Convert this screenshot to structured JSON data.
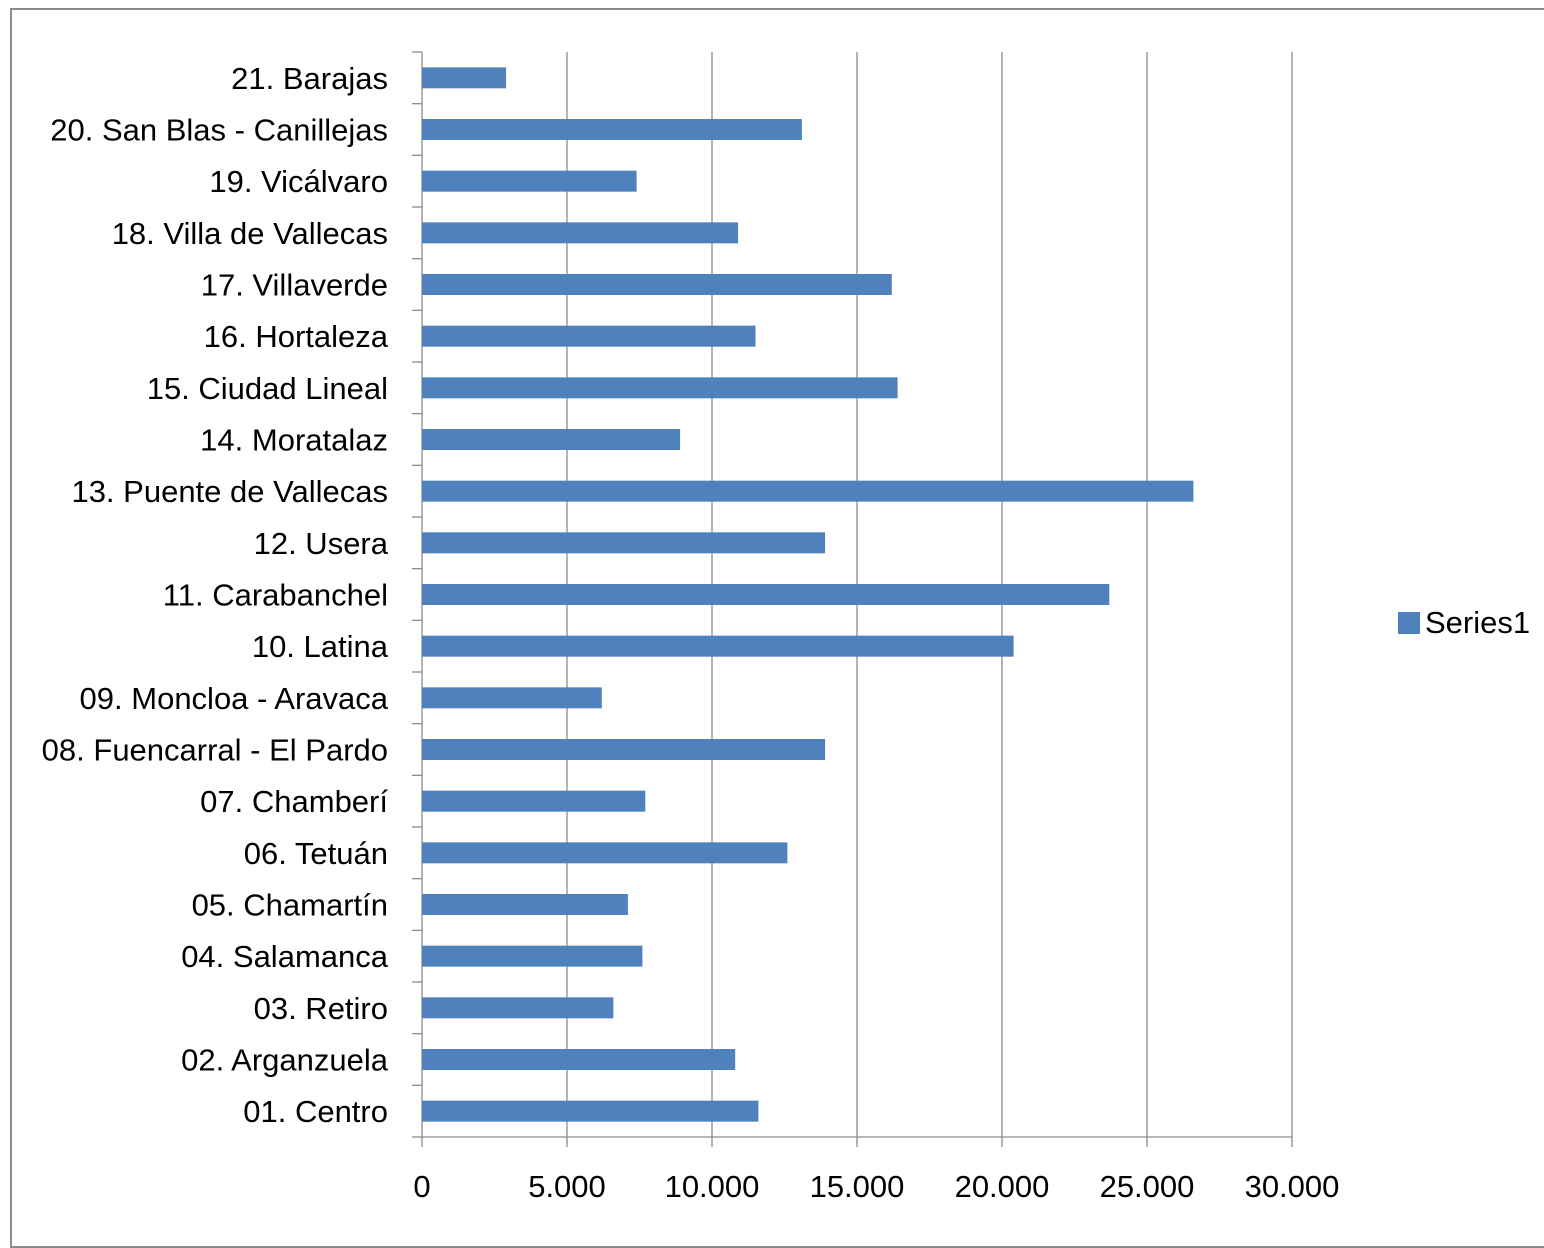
{
  "chart_data": {
    "type": "bar",
    "orientation": "horizontal",
    "categories": [
      "21. Barajas",
      "20. San Blas - Canillejas",
      "19. Vicálvaro",
      "18. Villa de Vallecas",
      "17. Villaverde",
      "16. Hortaleza",
      "15. Ciudad Lineal",
      "14. Moratalaz",
      "13. Puente de Vallecas",
      "12. Usera",
      "11. Carabanchel",
      "10. Latina",
      "09. Moncloa - Aravaca",
      "08. Fuencarral - El Pardo",
      "07. Chamberí",
      "06. Tetuán",
      "05. Chamartín",
      "04. Salamanca",
      "03. Retiro",
      "02. Arganzuela",
      "01. Centro"
    ],
    "series": [
      {
        "name": "Series1",
        "color": "#4f81bd",
        "values": [
          2900,
          13100,
          7400,
          10900,
          16200,
          11500,
          16400,
          8900,
          26600,
          13900,
          23700,
          20400,
          6200,
          13900,
          7700,
          12600,
          7100,
          7600,
          6600,
          10800,
          11600
        ]
      }
    ],
    "xlim": [
      0,
      30000
    ],
    "xticks": [
      0,
      5000,
      10000,
      15000,
      20000,
      25000,
      30000
    ],
    "xtick_labels": [
      "0",
      "5.000",
      "10.000",
      "15.000",
      "20.000",
      "25.000",
      "30.000"
    ],
    "grid": "vertical",
    "gridline_color": "#8c8c8c",
    "legend": {
      "position": "right",
      "entries": [
        "Series1"
      ]
    }
  }
}
